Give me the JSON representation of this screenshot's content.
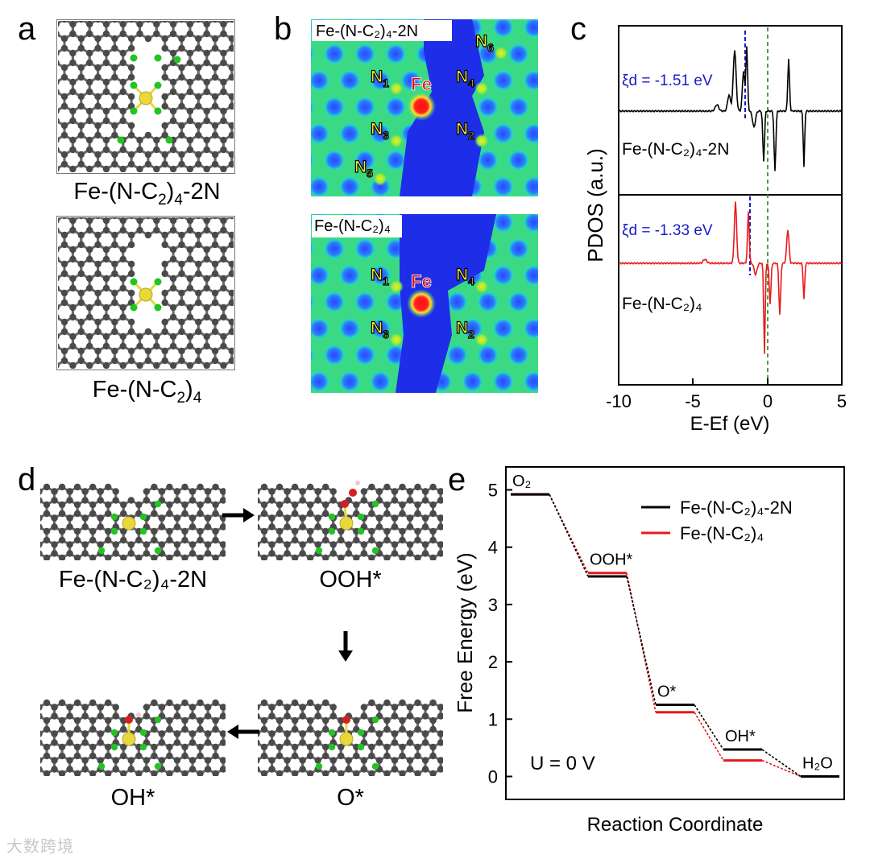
{
  "panels": {
    "a": {
      "letter": "a",
      "top_caption": {
        "pre": "Fe-(N-C",
        "s1": "2",
        "mid": ")",
        "s2": "4",
        "post": "-2N"
      },
      "bottom_caption": {
        "pre": "Fe-(N-C",
        "s1": "2",
        "mid": ")",
        "s2": "4",
        "post": ""
      }
    },
    "b": {
      "letter": "b",
      "top_map_label": "Fe-(N-C₂)₄-2N",
      "bottom_map_label": "Fe-(N-C₂)₄",
      "fe_label": "Fe",
      "top_sites": [
        "N1",
        "N2",
        "N3",
        "N4",
        "N5",
        "N6"
      ],
      "bottom_sites": [
        "N1",
        "N2",
        "N3",
        "N4"
      ]
    },
    "c": {
      "letter": "c",
      "ylabel": "PDOS (a.u.)",
      "xlabel": "E-Ef (eV)",
      "xticks": [
        "-10",
        "-5",
        "0",
        "5"
      ],
      "top_label": "Fe-(N-C₂)₄-2N",
      "bottom_label": "Fe-(N-C₂)₄",
      "top_xi": "ξd = -1.51 eV",
      "bottom_xi": "ξd = -1.33 eV",
      "colors": {
        "top": "#000000",
        "bottom": "#e8191c",
        "xi": "#1a1acc",
        "fermi": "#1a8a1a"
      }
    },
    "d": {
      "letter": "d",
      "labels": {
        "start": "Fe-(N-C₂)₄-2N",
        "ooh": "OOH*",
        "o": "O*",
        "oh": "OH*"
      }
    },
    "e": {
      "letter": "e",
      "u_label": "U = 0 V"
    }
  },
  "chart_data": {
    "type": "line",
    "title": "",
    "xlabel": "Reaction Coordinate",
    "ylabel": "Free Energy (eV)",
    "ylim": [
      -0.4,
      5.4
    ],
    "yticks": [
      "0",
      "1",
      "2",
      "3",
      "4",
      "5"
    ],
    "categories": [
      "O₂",
      "OOH*",
      "O*",
      "OH*",
      "H₂O"
    ],
    "series": [
      {
        "name": "Fe-(N-C₂)₄-2N",
        "color": "#000000",
        "values": [
          4.92,
          3.49,
          1.25,
          0.47,
          0.0
        ]
      },
      {
        "name": "Fe-(N-C₂)₄",
        "color": "#e8191c",
        "values": [
          4.92,
          3.55,
          1.12,
          0.28,
          0.0
        ]
      }
    ],
    "legend": "top-right",
    "grid": false
  },
  "watermark": "大数跨境"
}
